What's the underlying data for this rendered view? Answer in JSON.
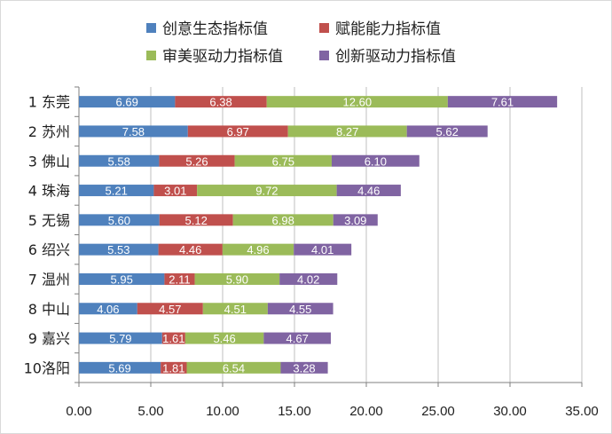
{
  "chart_data": {
    "type": "bar",
    "orientation": "horizontal",
    "stacked": true,
    "categories": [
      "1 东莞",
      "2 苏州",
      "3 佛山",
      "4 珠海",
      "5 无锡",
      "6 绍兴",
      "7 温州",
      "8 中山",
      "9 嘉兴",
      "10洛阳"
    ],
    "series": [
      {
        "name": "创意生态指标值",
        "color": "#4f81bd",
        "values": [
          6.69,
          7.58,
          5.58,
          5.21,
          5.6,
          5.53,
          5.95,
          4.06,
          5.79,
          5.69
        ]
      },
      {
        "name": "赋能能力指标值",
        "color": "#c0504d",
        "values": [
          6.38,
          6.97,
          5.26,
          3.01,
          5.12,
          4.46,
          2.11,
          4.57,
          1.61,
          1.81
        ]
      },
      {
        "name": "审美驱动力指标值",
        "color": "#9bbb59",
        "values": [
          12.6,
          8.27,
          6.75,
          9.72,
          6.98,
          4.96,
          5.9,
          4.51,
          5.46,
          6.54
        ]
      },
      {
        "name": "创新驱动力指标值",
        "color": "#8064a2",
        "values": [
          7.61,
          5.62,
          6.1,
          4.46,
          3.09,
          4.01,
          4.02,
          4.55,
          4.67,
          3.28
        ]
      }
    ],
    "value_labels": [
      [
        "6.69",
        "6.38",
        "12.60",
        "7.61"
      ],
      [
        "7.58",
        "6.97",
        "8.27",
        "5.62"
      ],
      [
        "5.58",
        "5.26",
        "6.75",
        "6.10"
      ],
      [
        "5.21",
        "3.01",
        "9.72",
        "4.46"
      ],
      [
        "5.60",
        "5.12",
        "6.98",
        "3.09"
      ],
      [
        "5.53",
        "4.46",
        "4.96",
        "4.01"
      ],
      [
        "5.95",
        "2.11",
        "5.90",
        "4.02"
      ],
      [
        "4.06",
        "4.57",
        "4.51",
        "4.55"
      ],
      [
        "5.79",
        "1.61",
        "5.46",
        "4.67"
      ],
      [
        "5.69",
        "1.81",
        "6.54",
        "3.28"
      ]
    ],
    "xlim": [
      0,
      35
    ],
    "xticks": [
      "0.00",
      "5.00",
      "10.00",
      "15.00",
      "20.00",
      "25.00",
      "30.00",
      "35.00"
    ],
    "grid": "vertical",
    "legend": "top",
    "title": "",
    "xlabel": "",
    "ylabel": ""
  }
}
